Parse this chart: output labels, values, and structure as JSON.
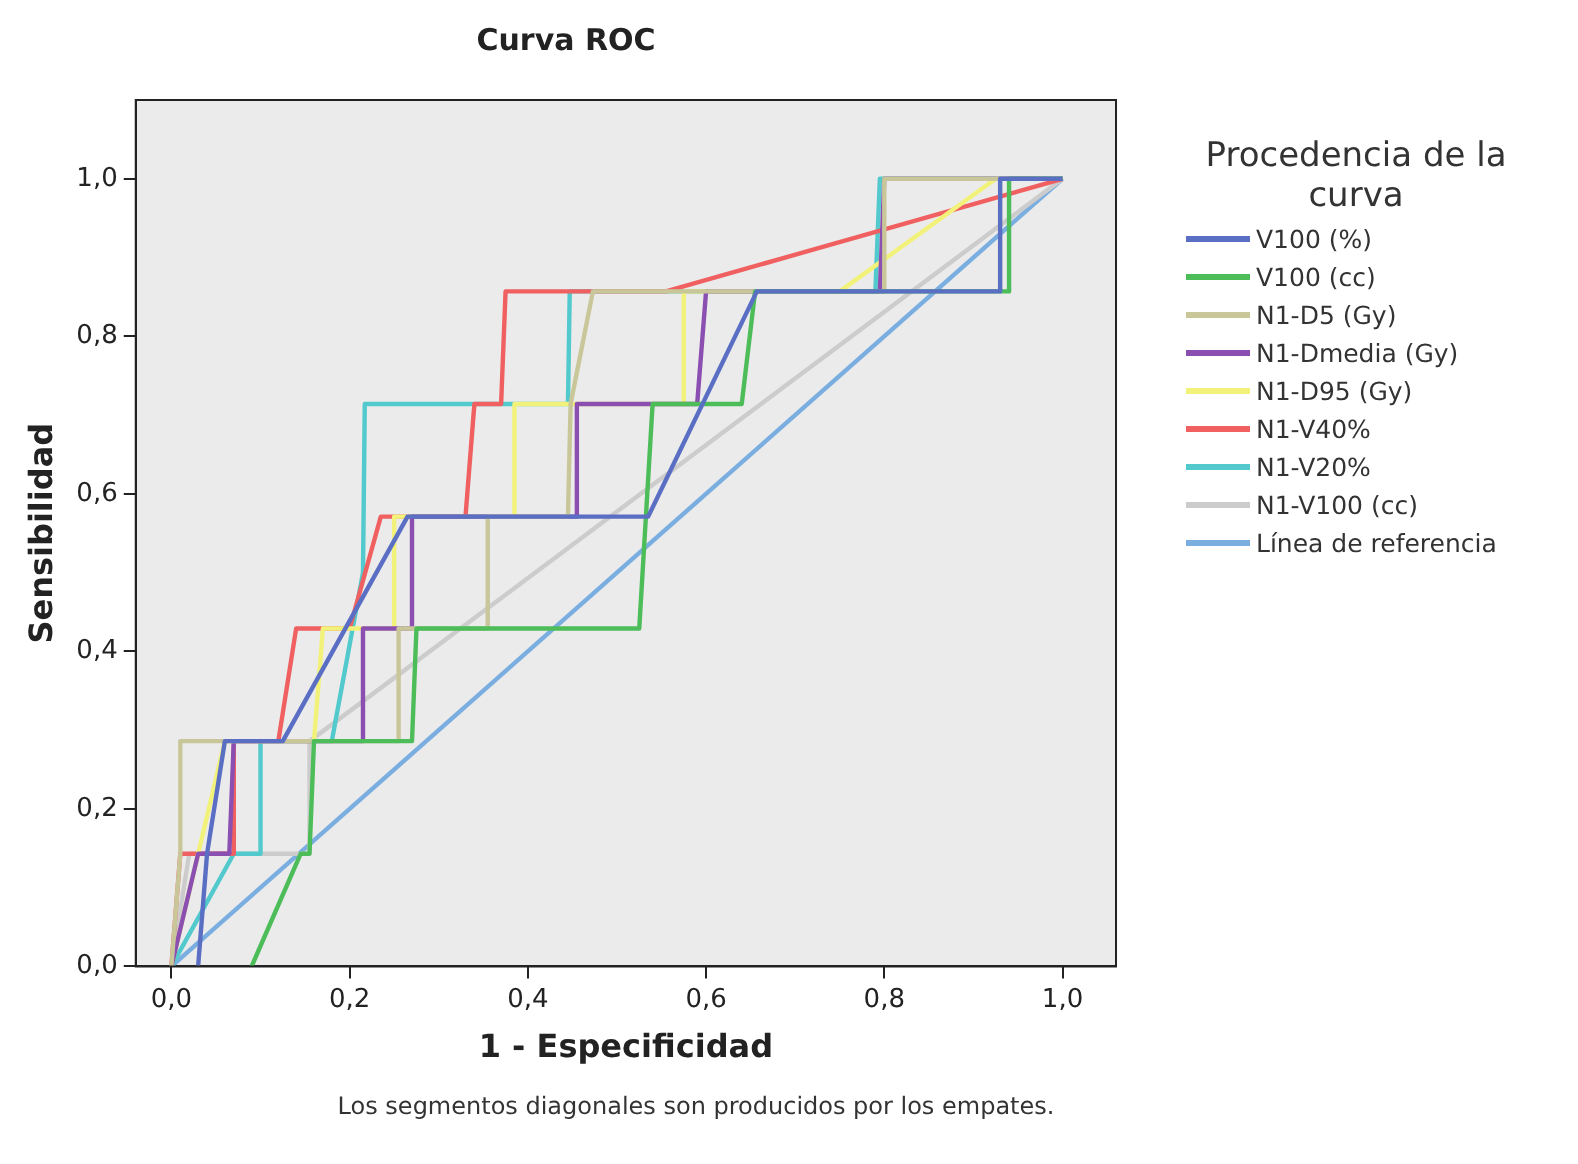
{
  "chart_data": {
    "type": "line",
    "title": "Curva ROC",
    "xlabel": "1 - Especificidad",
    "ylabel": "Sensibilidad",
    "legend_title": "Procedencia de la curva",
    "legend": "right",
    "grid": false,
    "marker": "none",
    "line_style": "solid",
    "xlim": [
      -0.04,
      1.06
    ],
    "ylim": [
      0,
      1.1
    ],
    "xticks": [
      {
        "value": 0,
        "label": "0,0"
      },
      {
        "value": 0.2,
        "label": "0,2"
      },
      {
        "value": 0.4,
        "label": "0,4"
      },
      {
        "value": 0.6,
        "label": "0,6"
      },
      {
        "value": 0.8,
        "label": "0,8"
      },
      {
        "value": 1,
        "label": "1,0"
      }
    ],
    "yticks": [
      {
        "value": 0,
        "label": "0,0"
      },
      {
        "value": 0.2,
        "label": "0,2"
      },
      {
        "value": 0.4,
        "label": "0,4"
      },
      {
        "value": 0.6,
        "label": "0,6"
      },
      {
        "value": 0.8,
        "label": "0,8"
      },
      {
        "value": 1,
        "label": "1,0"
      }
    ],
    "series": [
      {
        "name": "V100 (%)",
        "color": "#5a6fc4",
        "x": [
          0.03,
          0.04,
          0.06,
          0.125,
          0.265,
          0.535,
          0.657,
          0.93,
          0.93,
          1
        ],
        "values": [
          0,
          0.143,
          0.286,
          0.286,
          0.571,
          0.571,
          0.857,
          0.857,
          1,
          1
        ]
      },
      {
        "name": "V100 (cc)",
        "color": "#4dbd5a",
        "x": [
          0.09,
          0.145,
          0.155,
          0.16,
          0.27,
          0.275,
          0.525,
          0.54,
          0.64,
          0.655,
          0.94,
          0.94,
          1
        ],
        "values": [
          0,
          0.143,
          0.143,
          0.286,
          0.286,
          0.429,
          0.429,
          0.714,
          0.714,
          0.857,
          0.857,
          1,
          1
        ]
      },
      {
        "name": "N1-D5 (Gy)",
        "color": "#c9c79a",
        "x": [
          0,
          0.01,
          0.01,
          0.255,
          0.255,
          0.355,
          0.355,
          0.445,
          0.448,
          0.473,
          0.8,
          0.8,
          1
        ],
        "values": [
          0,
          0.143,
          0.286,
          0.286,
          0.429,
          0.429,
          0.571,
          0.571,
          0.714,
          0.857,
          0.857,
          1,
          1
        ]
      },
      {
        "name": "N1-Dmedia (Gy)",
        "color": "#8a4fb0",
        "x": [
          0,
          0.03,
          0.065,
          0.07,
          0.215,
          0.215,
          0.27,
          0.27,
          0.455,
          0.455,
          0.59,
          0.6,
          0.795,
          0.8,
          1
        ],
        "values": [
          0,
          0.143,
          0.143,
          0.286,
          0.286,
          0.429,
          0.429,
          0.571,
          0.571,
          0.714,
          0.714,
          0.857,
          0.857,
          1,
          1
        ]
      },
      {
        "name": "N1-D95 (Gy)",
        "color": "#f2f27a",
        "x": [
          0,
          0.03,
          0.06,
          0.16,
          0.17,
          0.25,
          0.25,
          0.385,
          0.385,
          0.575,
          0.575,
          0.75,
          0.925,
          1
        ],
        "values": [
          0,
          0.143,
          0.286,
          0.286,
          0.429,
          0.429,
          0.571,
          0.571,
          0.714,
          0.714,
          0.857,
          0.857,
          1,
          1
        ]
      },
      {
        "name": "N1-V40%",
        "color": "#f06060",
        "x": [
          0,
          0.01,
          0.07,
          0.07,
          0.12,
          0.14,
          0.2,
          0.235,
          0.33,
          0.34,
          0.37,
          0.375,
          0.555,
          1
        ],
        "values": [
          0,
          0.143,
          0.143,
          0.286,
          0.286,
          0.429,
          0.429,
          0.571,
          0.571,
          0.714,
          0.714,
          0.857,
          0.857,
          1
        ]
      },
      {
        "name": "N1-V20%",
        "color": "#52c9cc",
        "x": [
          0,
          0.07,
          0.1,
          0.1,
          0.18,
          0.215,
          0.217,
          0.445,
          0.447,
          0.79,
          0.795,
          1
        ],
        "values": [
          0,
          0.143,
          0.143,
          0.286,
          0.286,
          0.5,
          0.714,
          0.714,
          0.857,
          0.857,
          1,
          1
        ]
      },
      {
        "name": "N1-V100 (cc)",
        "color": "#cccccc",
        "x": [
          0,
          0.02,
          0.155,
          0.155,
          1
        ],
        "values": [
          0,
          0.143,
          0.143,
          0.286,
          1
        ]
      },
      {
        "name": "Línea de referencia",
        "color": "#7aaee0",
        "x": [
          0,
          1
        ],
        "values": [
          0,
          1
        ]
      }
    ],
    "annotations": [
      "Los segmentos diagonales son producidos por los empates."
    ]
  }
}
